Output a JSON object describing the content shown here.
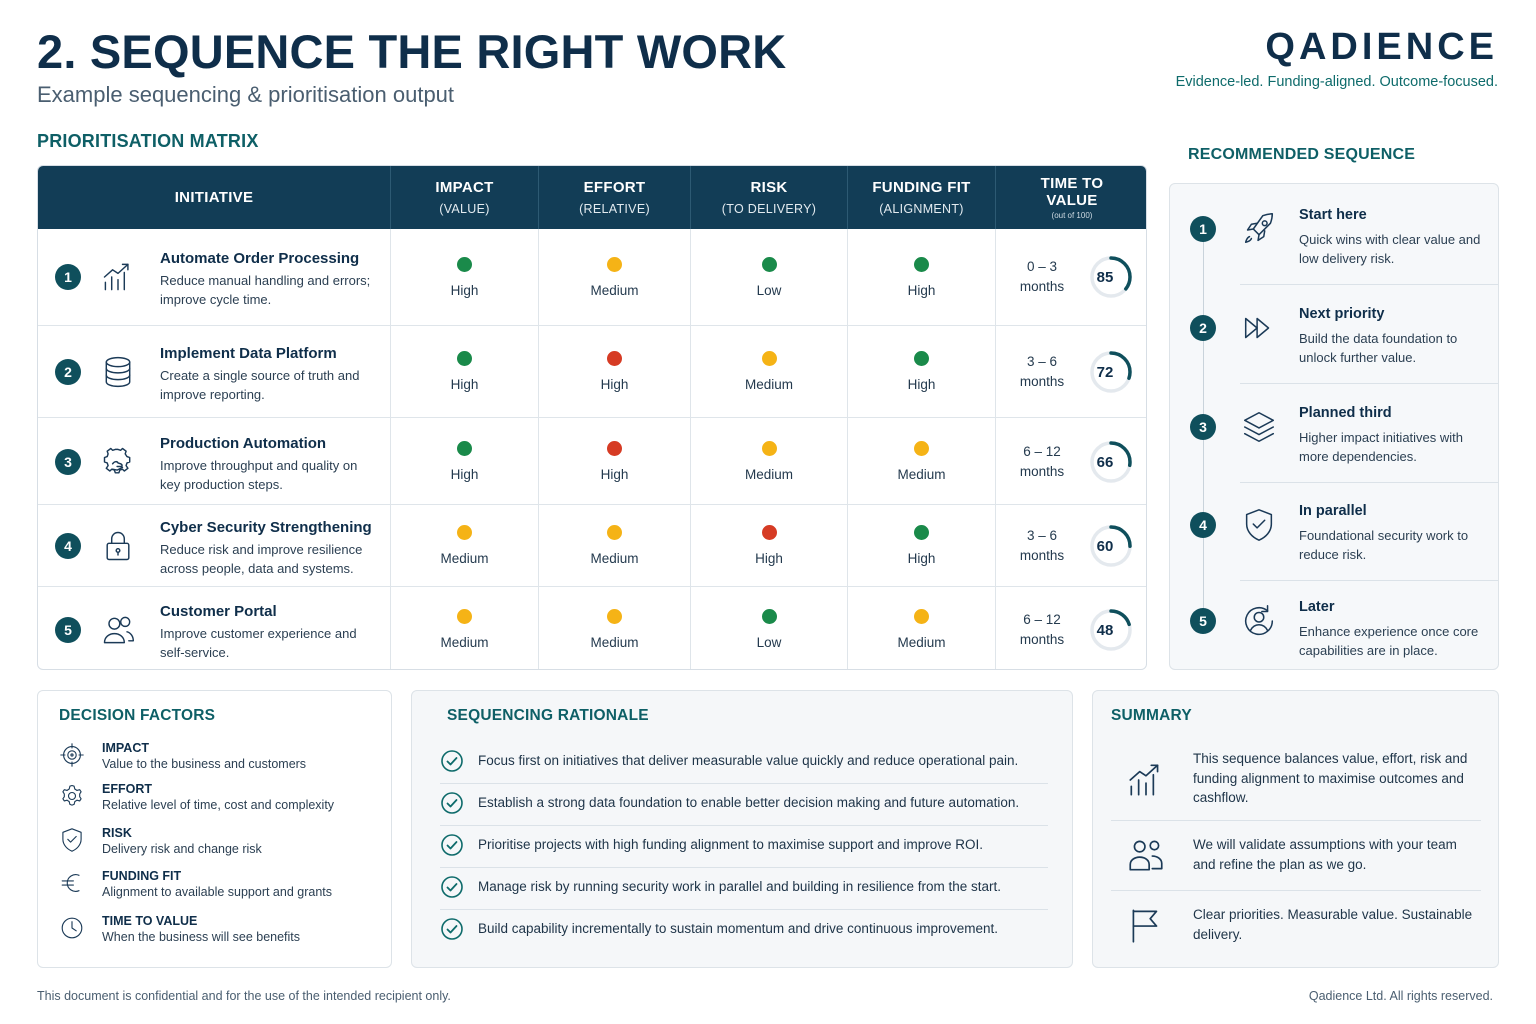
{
  "header": {
    "title": "2. SEQUENCE THE RIGHT WORK",
    "subtitle": "Example sequencing & prioritisation output",
    "brand": "QADIENCE",
    "tagline": "Evidence-led. Funding-aligned. Outcome-focused."
  },
  "colors": {
    "high_good": "#1a8a4a",
    "medium": "#f5b316",
    "bad": "#d63b24",
    "navy": "#123d56",
    "teal": "#0e5f66"
  },
  "matrix": {
    "title": "PRIORITISATION MATRIX",
    "columns": [
      {
        "main": "INITIATIVE",
        "sub": ""
      },
      {
        "main": "IMPACT",
        "sub": "(VALUE)"
      },
      {
        "main": "EFFORT",
        "sub": "(RELATIVE)"
      },
      {
        "main": "RISK",
        "sub": "(TO DELIVERY)"
      },
      {
        "main": "FUNDING FIT",
        "sub": "(ALIGNMENT)"
      },
      {
        "main": "TIME TO VALUE",
        "sub": "(out of 100)"
      }
    ],
    "rows": [
      {
        "num": "1",
        "icon": "growth-chart-icon",
        "name": "Automate Order Processing",
        "desc": "Reduce manual handling and errors; improve cycle time.",
        "impact": {
          "label": "High",
          "color": "#1a8a4a"
        },
        "effort": {
          "label": "Medium",
          "color": "#f5b316"
        },
        "risk": {
          "label": "Low",
          "color": "#1a8a4a"
        },
        "funding": {
          "label": "High",
          "color": "#1a8a4a"
        },
        "ttv_range": "0 – 3",
        "ttv_unit": "months",
        "score": 85
      },
      {
        "num": "2",
        "icon": "database-icon",
        "name": "Implement Data Platform",
        "desc": "Create a single source of truth and improve reporting.",
        "impact": {
          "label": "High",
          "color": "#1a8a4a"
        },
        "effort": {
          "label": "High",
          "color": "#d63b24"
        },
        "risk": {
          "label": "Medium",
          "color": "#f5b316"
        },
        "funding": {
          "label": "High",
          "color": "#1a8a4a"
        },
        "ttv_range": "3 – 6",
        "ttv_unit": "months",
        "score": 72
      },
      {
        "num": "3",
        "icon": "gear-hand-icon",
        "name": "Production Automation",
        "desc": "Improve throughput and quality on key production steps.",
        "impact": {
          "label": "High",
          "color": "#1a8a4a"
        },
        "effort": {
          "label": "High",
          "color": "#d63b24"
        },
        "risk": {
          "label": "Medium",
          "color": "#f5b316"
        },
        "funding": {
          "label": "Medium",
          "color": "#f5b316"
        },
        "ttv_range": "6 – 12",
        "ttv_unit": "months",
        "score": 66
      },
      {
        "num": "4",
        "icon": "padlock-icon",
        "name": "Cyber Security Strengthening",
        "desc": "Reduce risk and improve resilience across people, data and systems.",
        "impact": {
          "label": "Medium",
          "color": "#f5b316"
        },
        "effort": {
          "label": "Medium",
          "color": "#f5b316"
        },
        "risk": {
          "label": "High",
          "color": "#d63b24"
        },
        "funding": {
          "label": "High",
          "color": "#1a8a4a"
        },
        "ttv_range": "3 – 6",
        "ttv_unit": "months",
        "score": 60
      },
      {
        "num": "5",
        "icon": "users-icon",
        "name": "Customer Portal",
        "desc": "Improve customer experience and self-service.",
        "impact": {
          "label": "Medium",
          "color": "#f5b316"
        },
        "effort": {
          "label": "Medium",
          "color": "#f5b316"
        },
        "risk": {
          "label": "Low",
          "color": "#1a8a4a"
        },
        "funding": {
          "label": "Medium",
          "color": "#f5b316"
        },
        "ttv_range": "6 – 12",
        "ttv_unit": "months",
        "score": 48
      }
    ]
  },
  "sequence": {
    "title": "RECOMMENDED SEQUENCE",
    "items": [
      {
        "num": "1",
        "icon": "rocket-icon",
        "name": "Start here",
        "desc": "Quick wins with clear value and low delivery risk."
      },
      {
        "num": "2",
        "icon": "fast-forward-icon",
        "name": "Next priority",
        "desc": "Build the data foundation to unlock further value."
      },
      {
        "num": "3",
        "icon": "layers-icon",
        "name": "Planned third",
        "desc": "Higher impact initiatives with more dependencies."
      },
      {
        "num": "4",
        "icon": "shield-check-icon",
        "name": "In parallel",
        "desc": "Foundational security work to reduce risk."
      },
      {
        "num": "5",
        "icon": "user-refresh-icon",
        "name": "Later",
        "desc": "Enhance experience once core capabilities are in place."
      }
    ]
  },
  "decision_factors": {
    "title": "DECISION FACTORS",
    "items": [
      {
        "icon": "target-icon",
        "name": "IMPACT",
        "desc": "Value to the business and customers"
      },
      {
        "icon": "gear-icon",
        "name": "EFFORT",
        "desc": "Relative level of time, cost and complexity"
      },
      {
        "icon": "shield-check-icon",
        "name": "RISK",
        "desc": "Delivery risk and change risk"
      },
      {
        "icon": "euro-icon",
        "name": "FUNDING FIT",
        "desc": "Alignment to available support and grants"
      },
      {
        "icon": "clock-icon",
        "name": "TIME TO VALUE",
        "desc": "When the business will see benefits"
      }
    ]
  },
  "rationale": {
    "title": "SEQUENCING RATIONALE",
    "items": [
      "Focus first on initiatives that deliver measurable value quickly and reduce operational pain.",
      "Establish a strong data foundation to enable better decision making and future automation.",
      "Prioritise projects with high funding alignment to maximise support and improve ROI.",
      "Manage risk by running security work in parallel and building in resilience from the start.",
      "Build capability incrementally to sustain momentum and drive continuous improvement."
    ]
  },
  "summary": {
    "title": "SUMMARY",
    "items": [
      {
        "icon": "growth-chart-icon",
        "text": "This sequence balances value, effort, risk and funding alignment to maximise outcomes and cashflow."
      },
      {
        "icon": "team-icon",
        "text": "We will validate assumptions with your team and refine the plan as we go."
      },
      {
        "icon": "flag-icon",
        "text": "Clear priorities. Measurable value. Sustainable delivery."
      }
    ]
  },
  "footer": {
    "left": "This document is confidential and for the use of the intended recipient only.",
    "right": "Qadience Ltd. All rights reserved."
  }
}
